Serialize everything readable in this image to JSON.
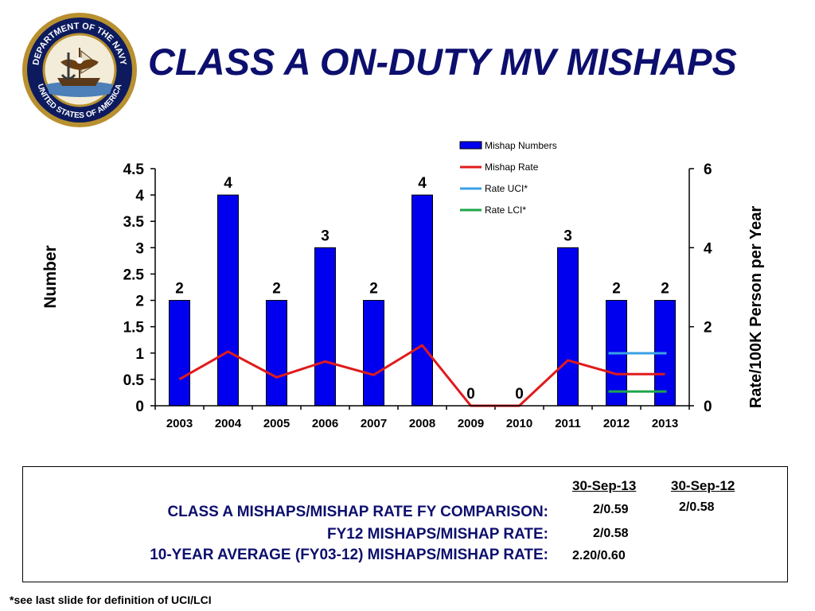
{
  "slide": {
    "title": "CLASS A ON-DUTY  MV MISHAPS",
    "logo": {
      "type": "seal",
      "text_top": "DEPARTMENT OF THE NAVY",
      "text_bottom": "UNITED STATES OF AMERICA",
      "color_ring": "#b8902f",
      "color_field": "#0d1b5e"
    },
    "footnote": "*see last slide for definition of UCI/LCI"
  },
  "chart_data": {
    "type": "bar",
    "categories": [
      "2003",
      "2004",
      "2005",
      "2006",
      "2007",
      "2008",
      "2009",
      "2010",
      "2011",
      "2012",
      "2013"
    ],
    "series": [
      {
        "name": "Mishap Numbers",
        "kind": "bar",
        "axis": "left",
        "color": "#0000ee",
        "values": [
          2,
          4,
          2,
          3,
          2,
          4,
          0,
          0,
          3,
          2,
          2
        ],
        "labels": [
          "2",
          "4",
          "2",
          "3",
          "2",
          "4",
          "0",
          "0",
          "3",
          "2",
          "2"
        ]
      },
      {
        "name": "Mishap Rate",
        "kind": "line",
        "axis": "right",
        "color": "#e01b1b",
        "values": [
          0.67,
          1.37,
          0.72,
          1.12,
          0.78,
          1.53,
          0,
          0,
          1.15,
          0.8,
          0.8
        ]
      },
      {
        "name": "Rate UCI*",
        "kind": "segment",
        "axis": "right",
        "color": "#3aa0e6",
        "x_from": "2012",
        "x_to": "2013",
        "value": 1.33
      },
      {
        "name": "Rate LCI*",
        "kind": "segment",
        "axis": "right",
        "color": "#1ea64a",
        "x_from": "2012",
        "x_to": "2013",
        "value": 0.36
      }
    ],
    "ylabel": "Number",
    "ylabel_right": "Rate/100K Person per Year",
    "ylim": [
      0,
      4.5
    ],
    "yticks": [
      "0",
      "0.5",
      "1",
      "1.5",
      "2",
      "2.5",
      "3",
      "3.5",
      "4",
      "4.5"
    ],
    "ylim_right": [
      0,
      6
    ],
    "yticks_right": [
      "0",
      "2",
      "4",
      "6"
    ],
    "legend_position": "top-right"
  },
  "comparison": {
    "heading": "CLASS A MISHAPS/MISHAP RATE FY COMPARISON:",
    "row2_label": "FY12 MISHAPS/MISHAP RATE:",
    "row3_label": "10-YEAR AVERAGE (FY03-12) MISHAPS/MISHAP RATE:",
    "col1_header": "30-Sep-13",
    "col2_header": "30-Sep-12",
    "col1_values": [
      "2/0.59",
      "2/0.58",
      "2.20/0.60"
    ],
    "col2_values": [
      "2/0.58"
    ]
  }
}
